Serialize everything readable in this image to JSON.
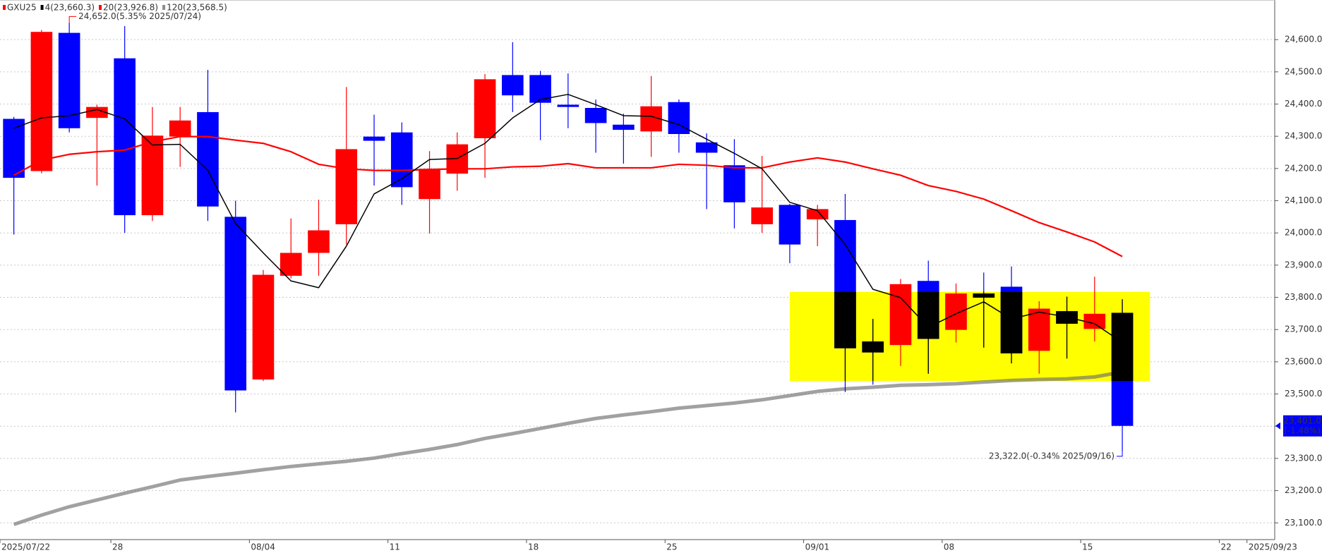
{
  "chart_data": {
    "type": "candlestick",
    "x": [
      "2025/07/22",
      "2025/07/23",
      "2025/07/24",
      "2025/07/25",
      "2025/07/28",
      "2025/07/29",
      "2025/07/30",
      "2025/07/31",
      "2025/08/01",
      "2025/08/04",
      "2025/08/05",
      "2025/08/06",
      "2025/08/07",
      "2025/08/08",
      "2025/08/11",
      "2025/08/12",
      "2025/08/13",
      "2025/08/14",
      "2025/08/15",
      "2025/08/18",
      "2025/08/19",
      "2025/08/20",
      "2025/08/21",
      "2025/08/22",
      "2025/08/25",
      "2025/08/26",
      "2025/08/27",
      "2025/08/28",
      "2025/08/29",
      "2025/09/01",
      "2025/09/02",
      "2025/09/03",
      "2025/09/04",
      "2025/09/05",
      "2025/09/08",
      "2025/09/09",
      "2025/09/10",
      "2025/09/11",
      "2025/09/12",
      "2025/09/15",
      "2025/09/16"
    ],
    "candles": {
      "name": "GXU25",
      "color": "#ff0000",
      "down_color": "#0000ff",
      "open": [
        24354,
        24192,
        24621,
        24357,
        24542,
        24055,
        24299,
        24375,
        24050,
        23545,
        23867,
        23938,
        24027,
        24299,
        24312,
        24105,
        24184,
        24294,
        24490,
        24490,
        24398,
        24388,
        24336,
        24315,
        24406,
        24281,
        24210,
        24027,
        24087,
        24042,
        24040,
        23663,
        23652,
        23851,
        23699,
        23812,
        23833,
        23634,
        23757,
        23702,
        23752
      ],
      "high": [
        24360,
        24630,
        24652,
        24398,
        24642,
        24391,
        24391,
        24506,
        24100,
        23885,
        24045,
        24103,
        24453,
        24367,
        24343,
        24254,
        24312,
        24493,
        24592,
        24503,
        24495,
        24414,
        24370,
        24487,
        24414,
        24309,
        24291,
        24239,
        24090,
        24087,
        24121,
        23733,
        23857,
        23914,
        23843,
        23877,
        23896,
        23788,
        23802,
        23864,
        23794
      ],
      "low": [
        23995,
        24185,
        24312,
        24147,
        24000,
        24037,
        24205,
        24037,
        23443,
        23540,
        23859,
        23867,
        23964,
        24147,
        24087,
        23998,
        24131,
        24171,
        24375,
        24288,
        24325,
        24249,
        24215,
        24236,
        24249,
        24074,
        24014,
        24000,
        23906,
        23959,
        23506,
        23529,
        23587,
        23563,
        23660,
        23644,
        23595,
        23563,
        23610,
        23663,
        23322
      ],
      "close": [
        24171,
        24624,
        24325,
        24391,
        24055,
        24302,
        24349,
        24082,
        23511,
        23870,
        23938,
        24008,
        24260,
        24286,
        24142,
        24199,
        24275,
        24477,
        24427,
        24404,
        24391,
        24341,
        24320,
        24393,
        24307,
        24249,
        24095,
        24079,
        23964,
        24074,
        23642,
        23629,
        23841,
        23671,
        23812,
        23799,
        23626,
        23765,
        23718,
        23749,
        23401
      ]
    },
    "series": [
      {
        "name": "4(23,660.3)",
        "color": "#000000",
        "values": [
          24325,
          24357,
          24364,
          24383,
          24354,
          24273,
          24275,
          24194,
          24029,
          23938,
          23851,
          23830,
          23959,
          24121,
          24168,
          24228,
          24231,
          24278,
          24357,
          24414,
          24430,
          24398,
          24364,
          24362,
          24336,
          24291,
          24247,
          24199,
          24095,
          24069,
          23964,
          23825,
          23799,
          23707,
          23749,
          23786,
          23733,
          23754,
          23739,
          23718,
          23660.3
        ]
      },
      {
        "name": "20(23,926.8)",
        "color": "#ff0000",
        "values": [
          24179,
          24226,
          24244,
          24252,
          24257,
          24283,
          24299,
          24299,
          24288,
          24278,
          24252,
          24213,
          24199,
          24194,
          24194,
          24197,
          24199,
          24199,
          24205,
          24207,
          24215,
          24202,
          24202,
          24202,
          24213,
          24210,
          24202,
          24202,
          24220,
          24233,
          24220,
          24199,
          24179,
          24147,
          24129,
          24105,
          24069,
          24032,
          24003,
          23972,
          23926.8
        ]
      },
      {
        "name": "120(23,568.5)",
        "color": "#8c8c8c",
        "values": [
          23095,
          23124,
          23150,
          23171,
          23192,
          23212,
          23233,
          23244,
          23254,
          23265,
          23275,
          23283,
          23291,
          23301,
          23315,
          23328,
          23343,
          23362,
          23377,
          23393,
          23409,
          23424,
          23435,
          23445,
          23456,
          23464,
          23472,
          23482,
          23495,
          23508,
          23516,
          23521,
          23527,
          23529,
          23532,
          23537,
          23542,
          23545,
          23547,
          23553,
          23568.5
        ]
      }
    ],
    "highlight": {
      "x": [
        "2025/08/29",
        "2025/09/17"
      ],
      "y": [
        23540,
        23817
      ],
      "color": "#ffff00"
    },
    "annotations": [
      {
        "text": "24,652.0(5.35% 2025/07/24)",
        "x": "2025/07/24",
        "y": 24652,
        "color": "#ff0000"
      },
      {
        "text": "23,322.0(-0.34% 2025/09/16)",
        "x": "2025/09/16",
        "y": 23322,
        "color": "#0000ff"
      }
    ],
    "last_price": {
      "value": 23401,
      "label": "23,401.0",
      "change": "(-1.48%)",
      "color": "#0000ff"
    },
    "xlim": [
      "2025/07/22",
      "2025/09/24"
    ],
    "xticks": [
      "2025/07/22",
      {
        "value": "2025/07/28",
        "label": "28"
      },
      {
        "value": "2025/08/04",
        "label": "08/04"
      },
      {
        "value": "2025/08/11",
        "label": "11"
      },
      {
        "value": "2025/08/18",
        "label": "18"
      },
      {
        "value": "2025/08/25",
        "label": "25"
      },
      {
        "value": "2025/09/01",
        "label": "09/01"
      },
      {
        "value": "2025/09/08",
        "label": "08"
      },
      {
        "value": "2025/09/15",
        "label": "15"
      },
      {
        "value": "2025/09/22",
        "label": "22"
      },
      "2025/09/23"
    ],
    "ylim": [
      23048,
      24723
    ],
    "yticks": [
      {
        "value": 23100,
        "label": "23,100.0"
      },
      {
        "value": 23200,
        "label": "23,200.0"
      },
      {
        "value": 23300,
        "label": "23,300.0"
      },
      {
        "value": 23400,
        "label": "23,400.0"
      },
      {
        "value": 23500,
        "label": "23,500.0"
      },
      {
        "value": 23600,
        "label": "23,600.0"
      },
      {
        "value": 23700,
        "label": "23,700.0"
      },
      {
        "value": 23800,
        "label": "23,800.0"
      },
      {
        "value": 23900,
        "label": "23,900.0"
      },
      {
        "value": 24000,
        "label": "24,000.0"
      },
      {
        "value": 24100,
        "label": "24,100.0"
      },
      {
        "value": 24200,
        "label": "24,200.0"
      },
      {
        "value": 24300,
        "label": "24,300.0"
      },
      {
        "value": 24400,
        "label": "24,400.0"
      },
      {
        "value": 24500,
        "label": "24,500.0"
      },
      {
        "value": 24600,
        "label": "24,600.0"
      }
    ],
    "grid": true
  }
}
